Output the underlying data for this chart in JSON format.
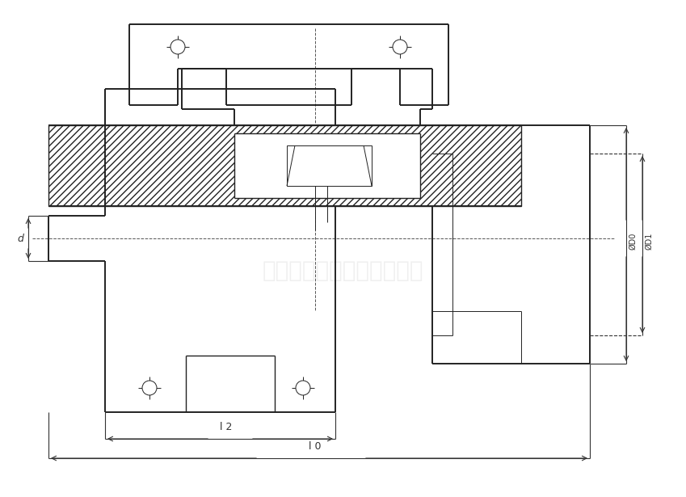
{
  "bg_color": "#ffffff",
  "line_color": "#222222",
  "dim_color": "#333333",
  "watermark_color": "#cccccc",
  "watermark_text": "汕头市利永联轴器有限公司",
  "label_d": "d",
  "label_L2": "l 2",
  "label_L0": "l 0",
  "label_D0": "ØD0",
  "label_D1": "ØD1",
  "figsize": [
    8.49,
    6.15
  ],
  "dpi": 100
}
